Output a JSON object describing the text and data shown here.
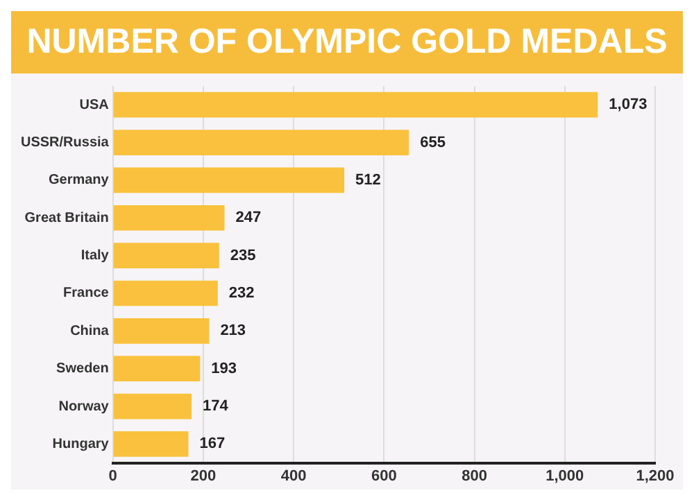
{
  "chart_data": {
    "type": "bar",
    "orientation": "horizontal",
    "title": "NUMBER OF OLYMPIC GOLD MEDALS",
    "categories": [
      "USA",
      "USSR/Russia",
      "Germany",
      "Great Britain",
      "Italy",
      "France",
      "China",
      "Sweden",
      "Norway",
      "Hungary"
    ],
    "values": [
      1073,
      655,
      512,
      247,
      235,
      232,
      213,
      193,
      174,
      167
    ],
    "value_labels": [
      "1,073",
      "655",
      "512",
      "247",
      "235",
      "232",
      "213",
      "193",
      "174",
      "167"
    ],
    "color": "#f9c13d",
    "xlim": [
      0,
      1200
    ],
    "xticks": [
      0,
      200,
      400,
      600,
      800,
      {
        "value": 1000,
        "label": "1,000"
      },
      {
        "value": 1200,
        "label": "1,200"
      }
    ],
    "grid": "x",
    "legend": false
  }
}
